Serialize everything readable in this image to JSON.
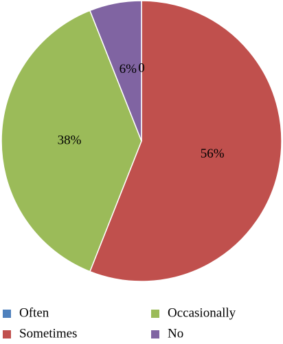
{
  "chart_data": {
    "type": "pie",
    "categories": [
      "Often",
      "Sometimes",
      "Occasionally",
      "No"
    ],
    "values": [
      0,
      56,
      38,
      6
    ],
    "value_labels": [
      "0",
      "56%",
      "38%",
      "6%"
    ],
    "colors": [
      "#4f81bd",
      "#c0504d",
      "#9bbb59",
      "#8064a2"
    ],
    "legend": "bottom"
  }
}
